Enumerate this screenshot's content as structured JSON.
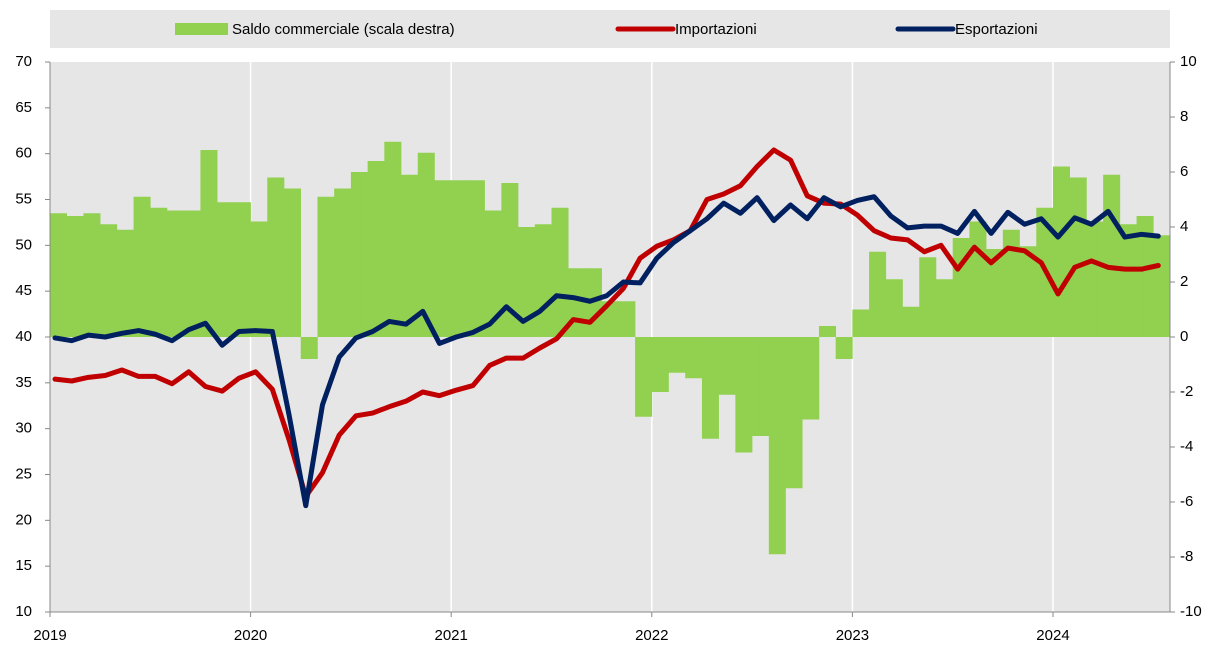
{
  "chart_data": {
    "type": "combo",
    "categories": [
      "2019",
      null,
      null,
      null,
      null,
      null,
      null,
      null,
      null,
      null,
      null,
      null,
      "2020",
      null,
      null,
      null,
      null,
      null,
      null,
      null,
      null,
      null,
      null,
      null,
      "2021",
      null,
      null,
      null,
      null,
      null,
      null,
      null,
      null,
      null,
      null,
      null,
      "2022",
      null,
      null,
      null,
      null,
      null,
      null,
      null,
      null,
      null,
      null,
      null,
      "2023",
      null,
      null,
      null,
      null,
      null,
      null,
      null,
      null,
      null,
      null,
      null,
      "2024",
      null,
      null,
      null,
      null,
      null,
      null
    ],
    "series": [
      {
        "name": "Saldo commerciale (scala destra)",
        "type": "bar",
        "axis": "y2",
        "color": "#92d050",
        "values": [
          4.5,
          4.4,
          4.5,
          4.1,
          3.9,
          5.1,
          4.7,
          4.6,
          4.6,
          6.8,
          4.9,
          4.9,
          4.2,
          5.8,
          5.4,
          -0.8,
          5.1,
          5.4,
          6.0,
          6.4,
          7.1,
          5.9,
          6.7,
          5.7,
          5.7,
          5.7,
          4.6,
          5.6,
          4.0,
          4.1,
          4.7,
          2.5,
          2.5,
          1.3,
          1.3,
          -2.9,
          -2.0,
          -1.3,
          -1.5,
          -3.7,
          -2.1,
          -4.2,
          -3.6,
          -7.9,
          -5.5,
          -3.0,
          0.4,
          -0.8,
          1.0,
          3.1,
          2.1,
          1.1,
          2.9,
          2.1,
          3.6,
          4.2,
          3.2,
          3.9,
          3.3,
          4.7,
          6.2,
          5.8,
          4.2,
          5.9,
          4.1,
          4.4,
          3.7
        ]
      },
      {
        "name": "Importazioni",
        "type": "line",
        "color": "#c00000",
        "values": [
          35.4,
          35.2,
          35.6,
          35.8,
          36.4,
          35.7,
          35.7,
          34.9,
          36.2,
          34.6,
          34.1,
          35.5,
          36.2,
          34.3,
          28.8,
          22.6,
          25.2,
          29.3,
          31.4,
          31.7,
          32.4,
          33.0,
          34.0,
          33.6,
          34.2,
          34.7,
          36.9,
          37.7,
          37.7,
          38.8,
          39.8,
          41.9,
          41.6,
          43.4,
          45.3,
          48.6,
          49.9,
          50.6,
          51.6,
          55.0,
          55.6,
          56.5,
          58.6,
          60.4,
          59.3,
          55.4,
          54.6,
          54.5,
          53.3,
          51.6,
          50.8,
          50.6,
          49.3,
          50.0,
          47.4,
          49.8,
          48.1,
          49.7,
          49.4,
          48.1,
          44.7,
          47.6,
          48.3,
          47.6,
          47.4,
          47.4,
          47.8
        ]
      },
      {
        "name": "Esportazioni",
        "type": "line",
        "color": "#002060",
        "values": [
          39.9,
          39.6,
          40.2,
          40.0,
          40.4,
          40.7,
          40.3,
          39.6,
          40.8,
          41.5,
          39.1,
          40.6,
          40.7,
          40.6,
          31.5,
          21.6,
          32.6,
          37.8,
          39.9,
          40.6,
          41.7,
          41.4,
          42.8,
          39.3,
          40.0,
          40.5,
          41.4,
          43.3,
          41.7,
          42.8,
          44.5,
          44.3,
          43.9,
          44.5,
          46.0,
          45.9,
          48.6,
          50.3,
          51.6,
          52.9,
          54.6,
          53.5,
          55.2,
          52.7,
          54.4,
          52.9,
          55.2,
          54.2,
          54.9,
          55.3,
          53.2,
          51.9,
          52.1,
          52.1,
          51.3,
          53.7,
          51.3,
          53.6,
          52.3,
          52.9,
          50.9,
          53.0,
          52.3,
          53.7,
          50.9,
          51.2,
          51.0
        ]
      }
    ],
    "ylim": [
      10,
      70
    ],
    "yticks": [
      10,
      15,
      20,
      25,
      30,
      35,
      40,
      45,
      50,
      55,
      60,
      65,
      70
    ],
    "y2lim": [
      -10,
      10
    ],
    "y2ticks": [
      -10,
      -8,
      -6,
      -4,
      -2,
      0,
      2,
      4,
      6,
      8,
      10
    ],
    "grid": "x",
    "legend": "top"
  }
}
